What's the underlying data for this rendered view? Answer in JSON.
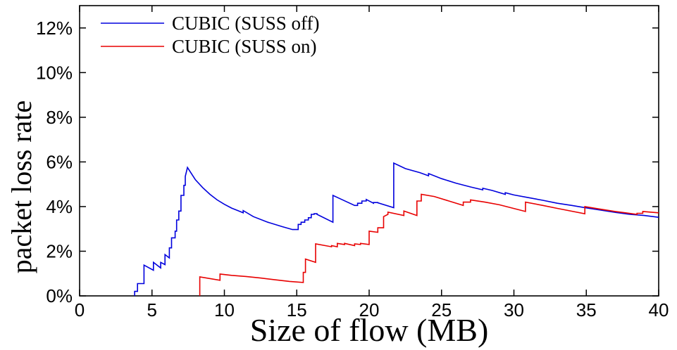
{
  "chart_data": {
    "type": "line",
    "title": "",
    "xlabel": "Size of flow (MB)",
    "ylabel": "packet loss rate",
    "xlim": [
      0,
      40
    ],
    "ylim": [
      0,
      13
    ],
    "x_ticks": [
      0,
      5,
      10,
      15,
      20,
      25,
      30,
      35,
      40
    ],
    "x_tick_labels": [
      "0",
      "5",
      "10",
      "15",
      "20",
      "25",
      "30",
      "35",
      "40"
    ],
    "y_ticks": [
      0,
      2,
      4,
      6,
      8,
      10,
      12
    ],
    "y_tick_labels": [
      "0%",
      "2%",
      "4%",
      "6%",
      "8%",
      "10%",
      "12%"
    ],
    "grid": false,
    "legend_position": "top-left",
    "series": [
      {
        "name": "CUBIC (SUSS off)",
        "color": "#0000dd",
        "x": [
          3.8,
          3.8,
          4.0,
          4.0,
          4.2,
          4.2,
          4.45,
          4.45,
          5.1,
          5.1,
          5.6,
          5.6,
          5.9,
          5.9,
          6.2,
          6.2,
          6.35,
          6.35,
          6.6,
          6.6,
          6.7,
          6.7,
          6.85,
          6.85,
          7.0,
          7.0,
          7.2,
          7.2,
          7.3,
          7.3,
          7.45,
          8.0,
          8.5,
          9.0,
          9.5,
          10.0,
          10.5,
          11.0,
          11.3,
          11.3,
          12.0,
          13.0,
          14.0,
          14.7,
          15.1,
          15.1,
          15.3,
          15.3,
          15.55,
          15.55,
          15.8,
          15.8,
          16.0,
          16.0,
          16.2,
          16.2,
          16.4,
          16.4,
          17.5,
          17.5,
          18.0,
          19.0,
          19.2,
          19.2,
          19.5,
          19.5,
          19.8,
          19.8,
          20.3,
          20.3,
          20.6,
          20.6,
          21.7,
          21.7,
          22.5,
          23.5,
          24.1,
          24.1,
          25.0,
          26.0,
          27.0,
          27.85,
          27.85,
          28.5,
          29.4,
          29.4,
          30.0,
          31.0,
          32.0,
          33.0,
          34.0,
          35.0,
          36.0,
          37.0,
          38.0,
          39.0,
          40.0
        ],
        "y": [
          0,
          0.2,
          0.2,
          0.55,
          0.55,
          0.55,
          0.55,
          1.38,
          1.15,
          1.5,
          1.25,
          1.5,
          1.4,
          1.85,
          1.7,
          2.15,
          2.15,
          2.6,
          2.6,
          2.9,
          2.9,
          3.4,
          3.4,
          3.8,
          3.8,
          4.5,
          4.5,
          4.95,
          4.95,
          5.35,
          5.75,
          5.2,
          4.85,
          4.55,
          4.3,
          4.1,
          3.93,
          3.8,
          3.72,
          3.82,
          3.55,
          3.3,
          3.1,
          2.97,
          2.97,
          3.2,
          3.2,
          3.3,
          3.3,
          3.4,
          3.4,
          3.5,
          3.5,
          3.65,
          3.65,
          3.68,
          3.68,
          3.65,
          3.3,
          4.5,
          4.35,
          4.05,
          4.05,
          4.15,
          4.15,
          4.25,
          4.25,
          4.32,
          4.15,
          4.18,
          4.18,
          4.17,
          3.95,
          5.95,
          5.7,
          5.52,
          5.38,
          5.48,
          5.25,
          5.05,
          4.88,
          4.75,
          4.82,
          4.72,
          4.55,
          4.62,
          4.52,
          4.4,
          4.28,
          4.15,
          4.05,
          3.94,
          3.84,
          3.74,
          3.65,
          3.6,
          3.52
        ]
      },
      {
        "name": "CUBIC (SUSS on)",
        "color": "#e80000",
        "x": [
          8.3,
          8.3,
          9.7,
          9.7,
          10.5,
          11.5,
          12.5,
          13.5,
          14.5,
          15.45,
          15.45,
          15.6,
          15.6,
          16.3,
          16.3,
          17.4,
          17.4,
          17.8,
          17.8,
          18.3,
          18.3,
          19.0,
          19.0,
          19.4,
          19.4,
          20.0,
          20.0,
          20.6,
          20.6,
          21.0,
          21.0,
          21.3,
          21.3,
          22.4,
          22.4,
          23.3,
          23.3,
          23.6,
          23.6,
          24.5,
          26.5,
          26.5,
          27.0,
          27.0,
          28.0,
          29.0,
          30.8,
          30.8,
          32.0,
          33.0,
          34.9,
          34.9,
          36.0,
          37.0,
          38.5,
          38.5,
          38.9,
          38.9,
          40.0
        ],
        "y": [
          0,
          0.85,
          0.7,
          0.98,
          0.92,
          0.87,
          0.8,
          0.72,
          0.65,
          0.6,
          1.05,
          1.05,
          1.65,
          1.5,
          2.33,
          2.2,
          2.25,
          2.2,
          2.35,
          2.3,
          2.35,
          2.25,
          2.33,
          2.3,
          2.35,
          2.3,
          2.9,
          2.85,
          3.05,
          3.05,
          3.55,
          3.65,
          3.75,
          3.6,
          3.8,
          3.6,
          4.25,
          4.25,
          4.55,
          4.45,
          4.05,
          4.2,
          4.2,
          4.3,
          4.2,
          4.08,
          3.78,
          4.2,
          4.05,
          3.92,
          3.68,
          4.0,
          3.88,
          3.78,
          3.65,
          3.7,
          3.7,
          3.78,
          3.72
        ]
      }
    ]
  }
}
